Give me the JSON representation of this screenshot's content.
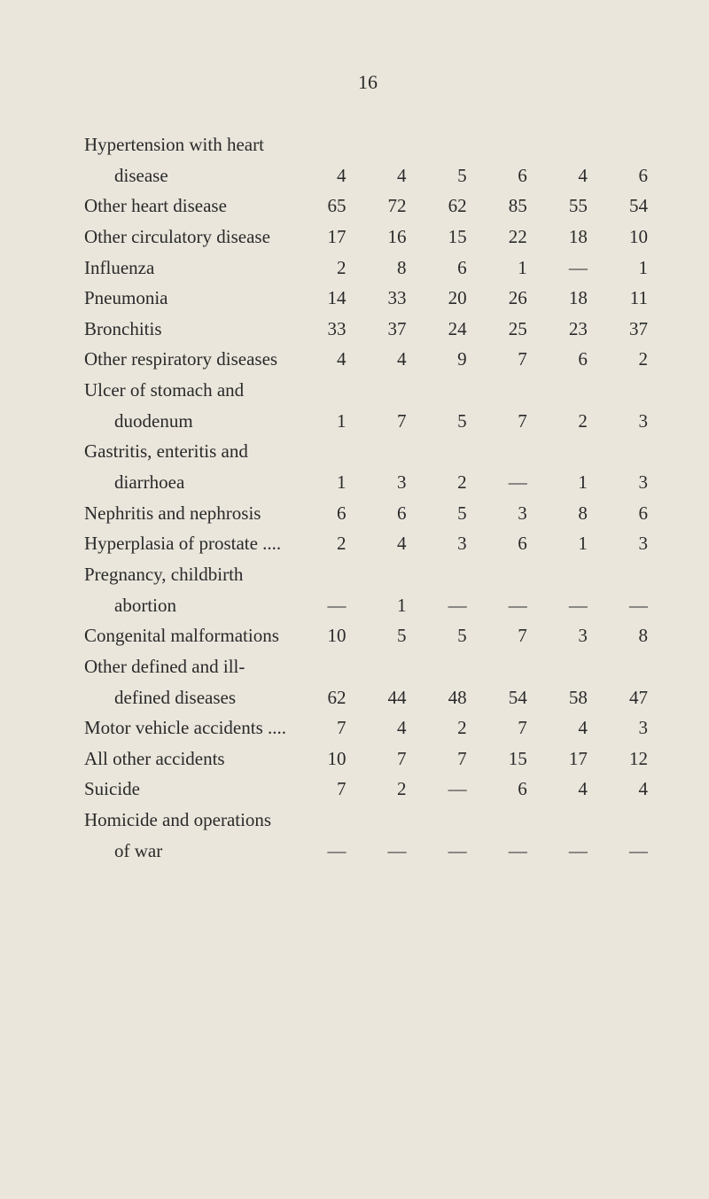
{
  "page_number": "16",
  "table": {
    "background_color": "#eae6dc",
    "text_color": "#2a2a2a",
    "font_family": "Times New Roman",
    "label_font_size": 21,
    "number_font_size": 21,
    "rows": [
      {
        "label": "Hypertension with heart",
        "values": [
          "",
          "",
          "",
          "",
          "",
          ""
        ],
        "continuation": true
      },
      {
        "label": "disease",
        "indent": true,
        "values": [
          "4",
          "4",
          "5",
          "6",
          "4",
          "6"
        ]
      },
      {
        "label": "Other heart disease",
        "values": [
          "65",
          "72",
          "62",
          "85",
          "55",
          "54"
        ]
      },
      {
        "label": "Other circulatory disease",
        "values": [
          "17",
          "16",
          "15",
          "22",
          "18",
          "10"
        ]
      },
      {
        "label": "Influenza",
        "values": [
          "2",
          "8",
          "6",
          "1",
          "—",
          "1"
        ]
      },
      {
        "label": "Pneumonia",
        "values": [
          "14",
          "33",
          "20",
          "26",
          "18",
          "11"
        ]
      },
      {
        "label": "Bronchitis",
        "values": [
          "33",
          "37",
          "24",
          "25",
          "23",
          "37"
        ]
      },
      {
        "label": "Other respiratory diseases",
        "values": [
          "4",
          "4",
          "9",
          "7",
          "6",
          "2"
        ]
      },
      {
        "label": "Ulcer of stomach and",
        "values": [
          "",
          "",
          "",
          "",
          "",
          ""
        ],
        "continuation": true
      },
      {
        "label": "duodenum",
        "indent": true,
        "values": [
          "1",
          "7",
          "5",
          "7",
          "2",
          "3"
        ]
      },
      {
        "label": "Gastritis, enteritis and",
        "values": [
          "",
          "",
          "",
          "",
          "",
          ""
        ],
        "continuation": true
      },
      {
        "label": "diarrhoea",
        "indent": true,
        "values": [
          "1",
          "3",
          "2",
          "—",
          "1",
          "3"
        ]
      },
      {
        "label": "Nephritis and nephrosis",
        "values": [
          "6",
          "6",
          "5",
          "3",
          "8",
          "6"
        ]
      },
      {
        "label": "Hyperplasia of prostate ....",
        "values": [
          "2",
          "4",
          "3",
          "6",
          "1",
          "3"
        ]
      },
      {
        "label": "Pregnancy, childbirth",
        "values": [
          "",
          "",
          "",
          "",
          "",
          ""
        ],
        "continuation": true
      },
      {
        "label": "abortion",
        "indent": true,
        "values": [
          "—",
          "1",
          "—",
          "—",
          "—",
          "—"
        ]
      },
      {
        "label": "Congenital malformations",
        "values": [
          "10",
          "5",
          "5",
          "7",
          "3",
          "8"
        ]
      },
      {
        "label": "Other defined and ill-",
        "values": [
          "",
          "",
          "",
          "",
          "",
          ""
        ],
        "continuation": true
      },
      {
        "label": "defined diseases",
        "indent": true,
        "values": [
          "62",
          "44",
          "48",
          "54",
          "58",
          "47"
        ]
      },
      {
        "label": "Motor vehicle accidents ....",
        "values": [
          "7",
          "4",
          "2",
          "7",
          "4",
          "3"
        ]
      },
      {
        "label": "All other accidents",
        "values": [
          "10",
          "7",
          "7",
          "15",
          "17",
          "12"
        ]
      },
      {
        "label": "Suicide",
        "values": [
          "7",
          "2",
          "—",
          "6",
          "4",
          "4"
        ]
      },
      {
        "label": "Homicide and operations",
        "values": [
          "",
          "",
          "",
          "",
          "",
          ""
        ],
        "continuation": true
      },
      {
        "label": "of war",
        "indent": true,
        "values": [
          "—",
          "—",
          "—",
          "—",
          "—",
          "—"
        ]
      }
    ]
  }
}
